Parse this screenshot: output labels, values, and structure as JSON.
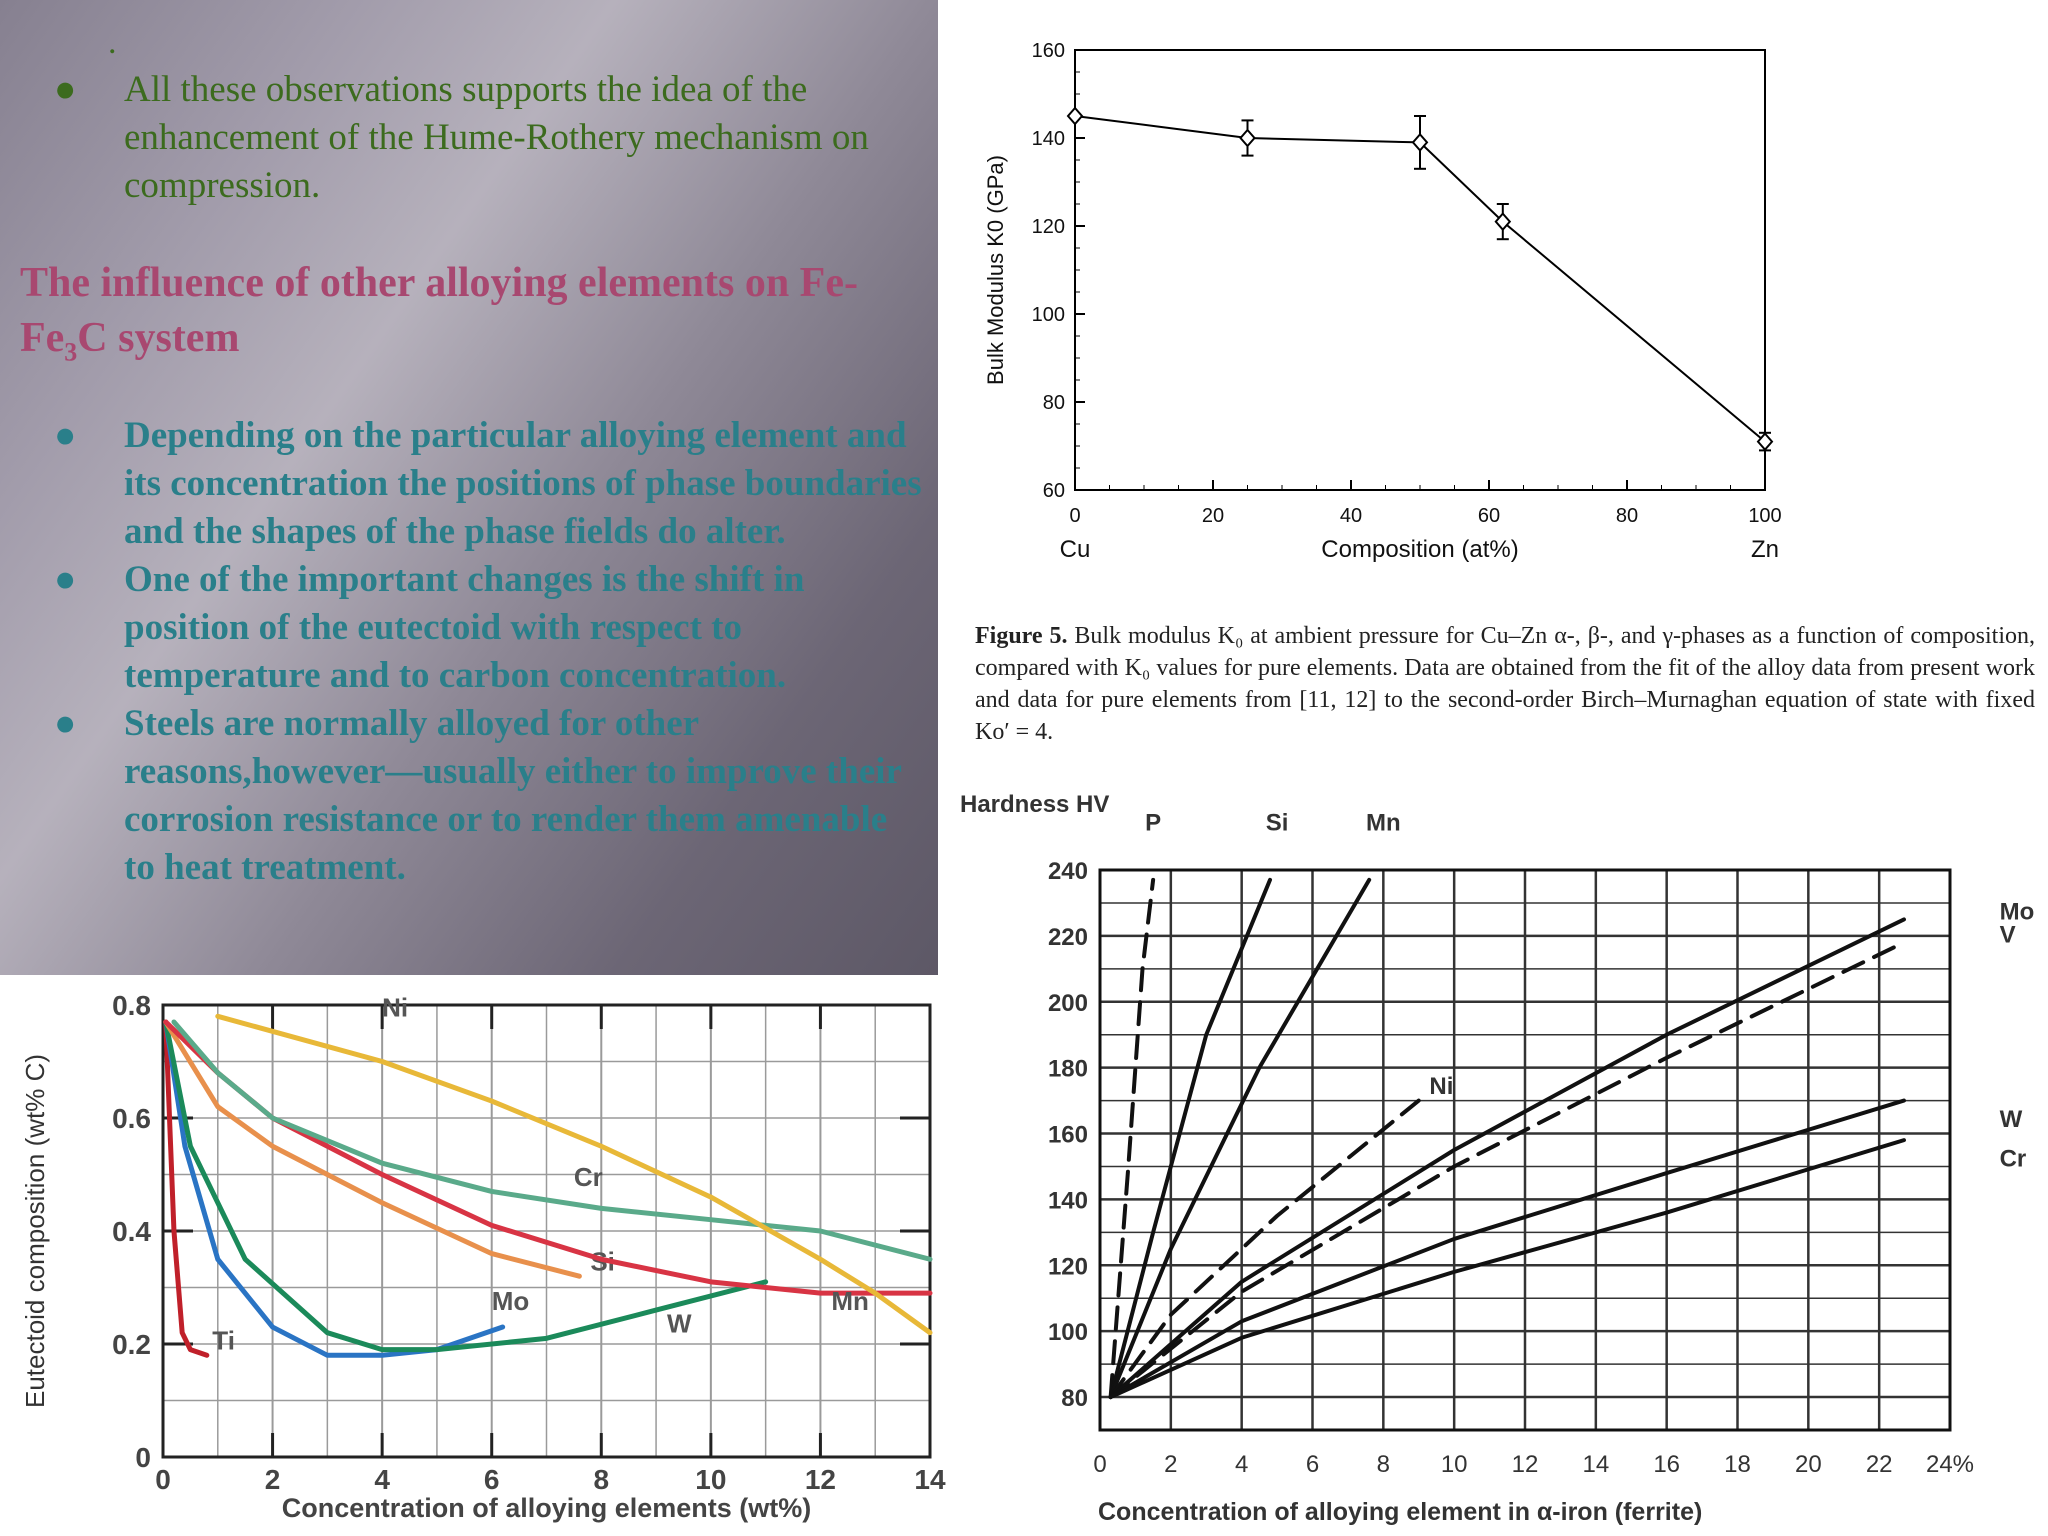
{
  "slide": {
    "top_mark": ".",
    "observation": "All these observations supports the idea of the enhancement of the Hume-Rothery mechanism on compression.",
    "heading_pre": "The influence of other alloying elements on Fe-Fe",
    "heading_sub": "3",
    "heading_post": "C system",
    "bullet_glyph": "●",
    "points": [
      "Depending on the particular alloying element and its concentration the positions of phase boundaries and the shapes of the phase fields do alter.",
      "One of the important changes is the shift in position of the eutectoid with respect to temperature and to carbon concentration.",
      "Steels are normally alloyed for other reasons,however—usually either to improve their corrosion resistance or to render them amenable to heat treatment."
    ]
  },
  "figure5": {
    "caption_label": "Figure 5.",
    "caption_text": "Bulk modulus K₀ at ambient pressure for Cu–Zn α-, β-, and γ-phases as a function of composition, compared with K₀ values for pure elements. Data are obtained from the fit of the alloy data from present work and data for pure elements from [11, 12] to the second-order Birch–Murnaghan equation of state with fixed Ko′ = 4."
  },
  "chart_data": [
    {
      "type": "line",
      "ylabel": "Bulk Modulus K0 (GPa)",
      "xlabel": "Composition (at%)",
      "x_end_labels": [
        "Cu",
        "Zn"
      ],
      "xlim": [
        0,
        100
      ],
      "ylim": [
        60,
        160
      ],
      "xticks": [
        0,
        20,
        40,
        60,
        80,
        100
      ],
      "yticks": [
        60,
        80,
        100,
        120,
        140,
        160
      ],
      "x": [
        0,
        25,
        50,
        62,
        100
      ],
      "y": [
        145,
        140,
        139,
        121,
        71
      ],
      "err": [
        0,
        4,
        6,
        4,
        2
      ],
      "marker": "diamond",
      "color": "#000000"
    },
    {
      "type": "line",
      "ylabel": "Eutectoid composition (wt% C)",
      "xlabel": "Concentration of alloying elements (wt%)",
      "xlim": [
        0,
        14
      ],
      "ylim": [
        0,
        0.8
      ],
      "xticks": [
        0,
        2,
        4,
        6,
        8,
        10,
        12,
        14
      ],
      "ytick_labels": [
        "0",
        "0.2",
        "0.4",
        "0.6",
        "0.8"
      ],
      "ytick_values": [
        0,
        0.2,
        0.4,
        0.6,
        0.8
      ],
      "grid": true,
      "series": [
        {
          "name": "Ti",
          "color": "#c0202a",
          "x": [
            0.05,
            0.2,
            0.35,
            0.5,
            0.8
          ],
          "y": [
            0.77,
            0.4,
            0.22,
            0.19,
            0.18
          ]
        },
        {
          "name": "Mo",
          "color": "#2a74c4",
          "x": [
            0.05,
            0.4,
            1,
            2,
            3,
            4,
            5,
            6.2
          ],
          "y": [
            0.77,
            0.55,
            0.35,
            0.23,
            0.18,
            0.18,
            0.19,
            0.23
          ]
        },
        {
          "name": "W",
          "color": "#1b8a5a",
          "x": [
            0.05,
            0.5,
            1.5,
            3,
            4,
            5,
            7,
            9,
            11
          ],
          "y": [
            0.77,
            0.55,
            0.35,
            0.22,
            0.19,
            0.19,
            0.21,
            0.26,
            0.31
          ]
        },
        {
          "name": "Si",
          "color": "#e8904c",
          "x": [
            0.05,
            1,
            2,
            4,
            6,
            7.6
          ],
          "y": [
            0.77,
            0.62,
            0.55,
            0.45,
            0.36,
            0.32
          ]
        },
        {
          "name": "Mn",
          "color": "#d83444",
          "x": [
            0.05,
            1,
            2,
            4,
            6,
            8,
            10,
            12,
            14
          ],
          "y": [
            0.77,
            0.68,
            0.6,
            0.5,
            0.41,
            0.35,
            0.31,
            0.29,
            0.29
          ]
        },
        {
          "name": "Cr",
          "color": "#5aaa8a",
          "x": [
            0.2,
            1,
            2,
            4,
            6,
            8,
            10,
            12,
            14
          ],
          "y": [
            0.77,
            0.68,
            0.6,
            0.52,
            0.47,
            0.44,
            0.42,
            0.4,
            0.35
          ]
        },
        {
          "name": "Ni",
          "color": "#e8b838",
          "x": [
            1,
            4,
            6,
            8,
            10,
            12,
            13,
            14
          ],
          "y": [
            0.78,
            0.7,
            0.63,
            0.55,
            0.46,
            0.35,
            0.29,
            0.22
          ]
        }
      ]
    },
    {
      "type": "line",
      "ylabel": "Hardness HV",
      "xlabel": "Concentration of alloying element in α-iron (ferrite)",
      "xlim": [
        0,
        24
      ],
      "ylim": [
        70,
        240
      ],
      "xticks": [
        0,
        2,
        4,
        6,
        8,
        10,
        12,
        14,
        16,
        18,
        20,
        22,
        24
      ],
      "x_last_label": "24%",
      "yticks": [
        80,
        100,
        120,
        140,
        160,
        180,
        200,
        220,
        240
      ],
      "grid": true,
      "series": [
        {
          "name": "P",
          "dashed": true,
          "x": [
            0.3,
            0.8,
            1.2,
            1.5
          ],
          "y": [
            80,
            150,
            210,
            237
          ]
        },
        {
          "name": "Si",
          "dashed": false,
          "x": [
            0.3,
            1.5,
            3,
            4.8
          ],
          "y": [
            80,
            130,
            190,
            237
          ]
        },
        {
          "name": "Mn",
          "dashed": false,
          "x": [
            0.3,
            2,
            4.5,
            7.6
          ],
          "y": [
            80,
            125,
            180,
            237
          ]
        },
        {
          "name": "Ni",
          "dashed": true,
          "x": [
            0.3,
            2,
            5,
            9
          ],
          "y": [
            80,
            105,
            135,
            170
          ]
        },
        {
          "name": "Mo",
          "dashed": false,
          "x": [
            0.3,
            4,
            10,
            16,
            22.7
          ],
          "y": [
            80,
            115,
            155,
            190,
            225
          ]
        },
        {
          "name": "V",
          "dashed": true,
          "x": [
            0.3,
            4,
            10,
            16,
            22.7
          ],
          "y": [
            80,
            112,
            150,
            183,
            218
          ]
        },
        {
          "name": "W",
          "dashed": false,
          "x": [
            0.3,
            4,
            10,
            16,
            22.7
          ],
          "y": [
            80,
            103,
            128,
            148,
            170
          ]
        },
        {
          "name": "Cr",
          "dashed": false,
          "x": [
            0.3,
            4,
            10,
            16,
            22.7
          ],
          "y": [
            80,
            98,
            118,
            136,
            158
          ]
        }
      ]
    }
  ]
}
